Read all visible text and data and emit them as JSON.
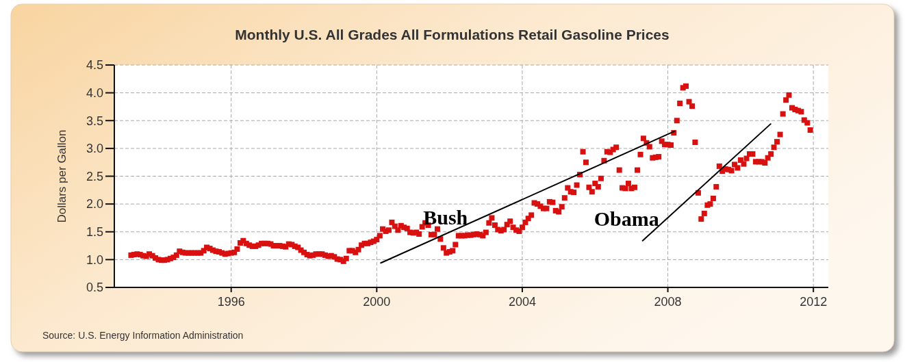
{
  "chart_data": {
    "type": "scatter",
    "title": "Monthly U.S. All Grades All Formulations Retail Gasoline Prices",
    "ylabel": "Dollars per Gallon",
    "xlim": [
      "1992-10-15",
      "2012-05-30"
    ],
    "xticks": [
      "1996",
      "2000",
      "2004",
      "2008",
      "2012"
    ],
    "ylim": [
      0.5,
      4.5
    ],
    "yticks": [
      0.5,
      {
        "value": 1,
        "label": "1.0"
      },
      1.5,
      {
        "value": 2,
        "label": "2.0"
      },
      2.5,
      {
        "value": 3,
        "label": "3.0"
      },
      3.5,
      {
        "value": 4,
        "label": "4.0"
      },
      4.5
    ],
    "grid": true,
    "marker": "square",
    "x": [
      "1993-04",
      "1993-05",
      "1993-06",
      "1993-07",
      "1993-08",
      "1993-09",
      "1993-10",
      "1993-11",
      "1993-12",
      "1994-01",
      "1994-02",
      "1994-03",
      "1994-04",
      "1994-05",
      "1994-06",
      "1994-07",
      "1994-08",
      "1994-09",
      "1994-10",
      "1994-11",
      "1994-12",
      "1995-01",
      "1995-02",
      "1995-03",
      "1995-04",
      "1995-05",
      "1995-06",
      "1995-07",
      "1995-08",
      "1995-09",
      "1995-10",
      "1995-11",
      "1995-12",
      "1996-01",
      "1996-02",
      "1996-03",
      "1996-04",
      "1996-05",
      "1996-06",
      "1996-07",
      "1996-08",
      "1996-09",
      "1996-10",
      "1996-11",
      "1996-12",
      "1997-01",
      "1997-02",
      "1997-03",
      "1997-04",
      "1997-05",
      "1997-06",
      "1997-07",
      "1997-08",
      "1997-09",
      "1997-10",
      "1997-11",
      "1997-12",
      "1998-01",
      "1998-02",
      "1998-03",
      "1998-04",
      "1998-05",
      "1998-06",
      "1998-07",
      "1998-08",
      "1998-09",
      "1998-10",
      "1998-11",
      "1998-12",
      "1999-01",
      "1999-02",
      "1999-03",
      "1999-04",
      "1999-05",
      "1999-06",
      "1999-07",
      "1999-08",
      "1999-09",
      "1999-10",
      "1999-11",
      "1999-12",
      "2000-01",
      "2000-02",
      "2000-03",
      "2000-04",
      "2000-05",
      "2000-06",
      "2000-07",
      "2000-08",
      "2000-09",
      "2000-10",
      "2000-11",
      "2000-12",
      "2001-01",
      "2001-02",
      "2001-03",
      "2001-04",
      "2001-05",
      "2001-06",
      "2001-07",
      "2001-08",
      "2001-09",
      "2001-10",
      "2001-11",
      "2001-12",
      "2002-01",
      "2002-02",
      "2002-03",
      "2002-04",
      "2002-05",
      "2002-06",
      "2002-07",
      "2002-08",
      "2002-09",
      "2002-10",
      "2002-11",
      "2002-12",
      "2003-01",
      "2003-02",
      "2003-03",
      "2003-04",
      "2003-05",
      "2003-06",
      "2003-07",
      "2003-08",
      "2003-09",
      "2003-10",
      "2003-11",
      "2003-12",
      "2004-01",
      "2004-02",
      "2004-03",
      "2004-04",
      "2004-05",
      "2004-06",
      "2004-07",
      "2004-08",
      "2004-09",
      "2004-10",
      "2004-11",
      "2004-12",
      "2005-01",
      "2005-02",
      "2005-03",
      "2005-04",
      "2005-05",
      "2005-06",
      "2005-07",
      "2005-08",
      "2005-09",
      "2005-10",
      "2005-11",
      "2005-12",
      "2006-01",
      "2006-02",
      "2006-03",
      "2006-04",
      "2006-05",
      "2006-06",
      "2006-07",
      "2006-08",
      "2006-09",
      "2006-10",
      "2006-11",
      "2006-12",
      "2007-01",
      "2007-02",
      "2007-03",
      "2007-04",
      "2007-05",
      "2007-06",
      "2007-07",
      "2007-08",
      "2007-09",
      "2007-10",
      "2007-11",
      "2007-12",
      "2008-01",
      "2008-02",
      "2008-03",
      "2008-04",
      "2008-05",
      "2008-06",
      "2008-07",
      "2008-08",
      "2008-09",
      "2008-10",
      "2008-11",
      "2008-12",
      "2009-01",
      "2009-02",
      "2009-03",
      "2009-04",
      "2009-05",
      "2009-06",
      "2009-07",
      "2009-08",
      "2009-09",
      "2009-10",
      "2009-11",
      "2009-12",
      "2010-01",
      "2010-02",
      "2010-03",
      "2010-04",
      "2010-05",
      "2010-06",
      "2010-07",
      "2010-08",
      "2010-09",
      "2010-10",
      "2010-11",
      "2010-12",
      "2011-01",
      "2011-02",
      "2011-03",
      "2011-04",
      "2011-05",
      "2011-06",
      "2011-07",
      "2011-08",
      "2011-09",
      "2011-10",
      "2011-11",
      "2011-12"
    ],
    "series": [
      {
        "color": "#d81010",
        "values": [
          1.08,
          1.09,
          1.1,
          1.09,
          1.07,
          1.06,
          1.1,
          1.07,
          1.03,
          1.0,
          0.99,
          0.99,
          1.0,
          1.02,
          1.04,
          1.08,
          1.15,
          1.13,
          1.12,
          1.12,
          1.12,
          1.12,
          1.12,
          1.12,
          1.16,
          1.22,
          1.2,
          1.17,
          1.15,
          1.14,
          1.12,
          1.1,
          1.11,
          1.12,
          1.13,
          1.19,
          1.3,
          1.34,
          1.29,
          1.26,
          1.24,
          1.24,
          1.26,
          1.29,
          1.29,
          1.29,
          1.28,
          1.25,
          1.25,
          1.25,
          1.24,
          1.23,
          1.28,
          1.27,
          1.24,
          1.22,
          1.17,
          1.13,
          1.09,
          1.07,
          1.08,
          1.1,
          1.1,
          1.1,
          1.08,
          1.06,
          1.07,
          1.05,
          1.01,
          1.0,
          0.97,
          1.02,
          1.16,
          1.16,
          1.13,
          1.18,
          1.26,
          1.29,
          1.29,
          1.31,
          1.33,
          1.36,
          1.43,
          1.55,
          1.51,
          1.53,
          1.67,
          1.6,
          1.53,
          1.61,
          1.58,
          1.56,
          1.49,
          1.48,
          1.49,
          1.46,
          1.59,
          1.66,
          1.62,
          1.45,
          1.45,
          1.55,
          1.37,
          1.21,
          1.12,
          1.14,
          1.16,
          1.27,
          1.43,
          1.43,
          1.43,
          1.44,
          1.44,
          1.45,
          1.46,
          1.45,
          1.43,
          1.49,
          1.66,
          1.75,
          1.62,
          1.54,
          1.52,
          1.54,
          1.63,
          1.69,
          1.58,
          1.53,
          1.51,
          1.58,
          1.67,
          1.74,
          1.8,
          2.02,
          2.0,
          1.96,
          1.92,
          1.92,
          2.04,
          2.03,
          1.88,
          1.86,
          1.95,
          2.11,
          2.29,
          2.22,
          2.21,
          2.34,
          2.53,
          2.94,
          2.75,
          2.3,
          2.22,
          2.37,
          2.31,
          2.46,
          2.78,
          2.94,
          2.93,
          2.98,
          3.02,
          2.61,
          2.29,
          2.28,
          2.37,
          2.28,
          2.3,
          2.61,
          2.89,
          3.18,
          3.1,
          3.03,
          2.83,
          2.84,
          2.85,
          3.13,
          3.07,
          3.07,
          3.06,
          3.28,
          3.5,
          3.81,
          4.09,
          4.12,
          3.84,
          3.76,
          3.11,
          2.2,
          1.73,
          1.83,
          1.98,
          2.0,
          2.1,
          2.31,
          2.68,
          2.59,
          2.63,
          2.62,
          2.6,
          2.71,
          2.65,
          2.79,
          2.72,
          2.82,
          2.9,
          2.9,
          2.76,
          2.76,
          2.76,
          2.74,
          2.83,
          2.9,
          3.02,
          3.12,
          3.25,
          3.62,
          3.87,
          3.96,
          3.73,
          3.7,
          3.68,
          3.66,
          3.51,
          3.46,
          3.33
        ]
      },
      {
        "type": "line",
        "name": "Bush",
        "color": "#000000",
        "marker": "none",
        "x": [
          "2000-02-11",
          "2008-03-10"
        ],
        "values": [
          0.94,
          3.31
        ]
      },
      {
        "type": "line",
        "name": "Obama",
        "color": "#000000",
        "marker": "none",
        "x": [
          "2007-04-23",
          "2010-10-29"
        ],
        "values": [
          1.34,
          3.44
        ]
      }
    ],
    "annotations": [
      "Source: U.S. Energy Information Administration"
    ]
  }
}
